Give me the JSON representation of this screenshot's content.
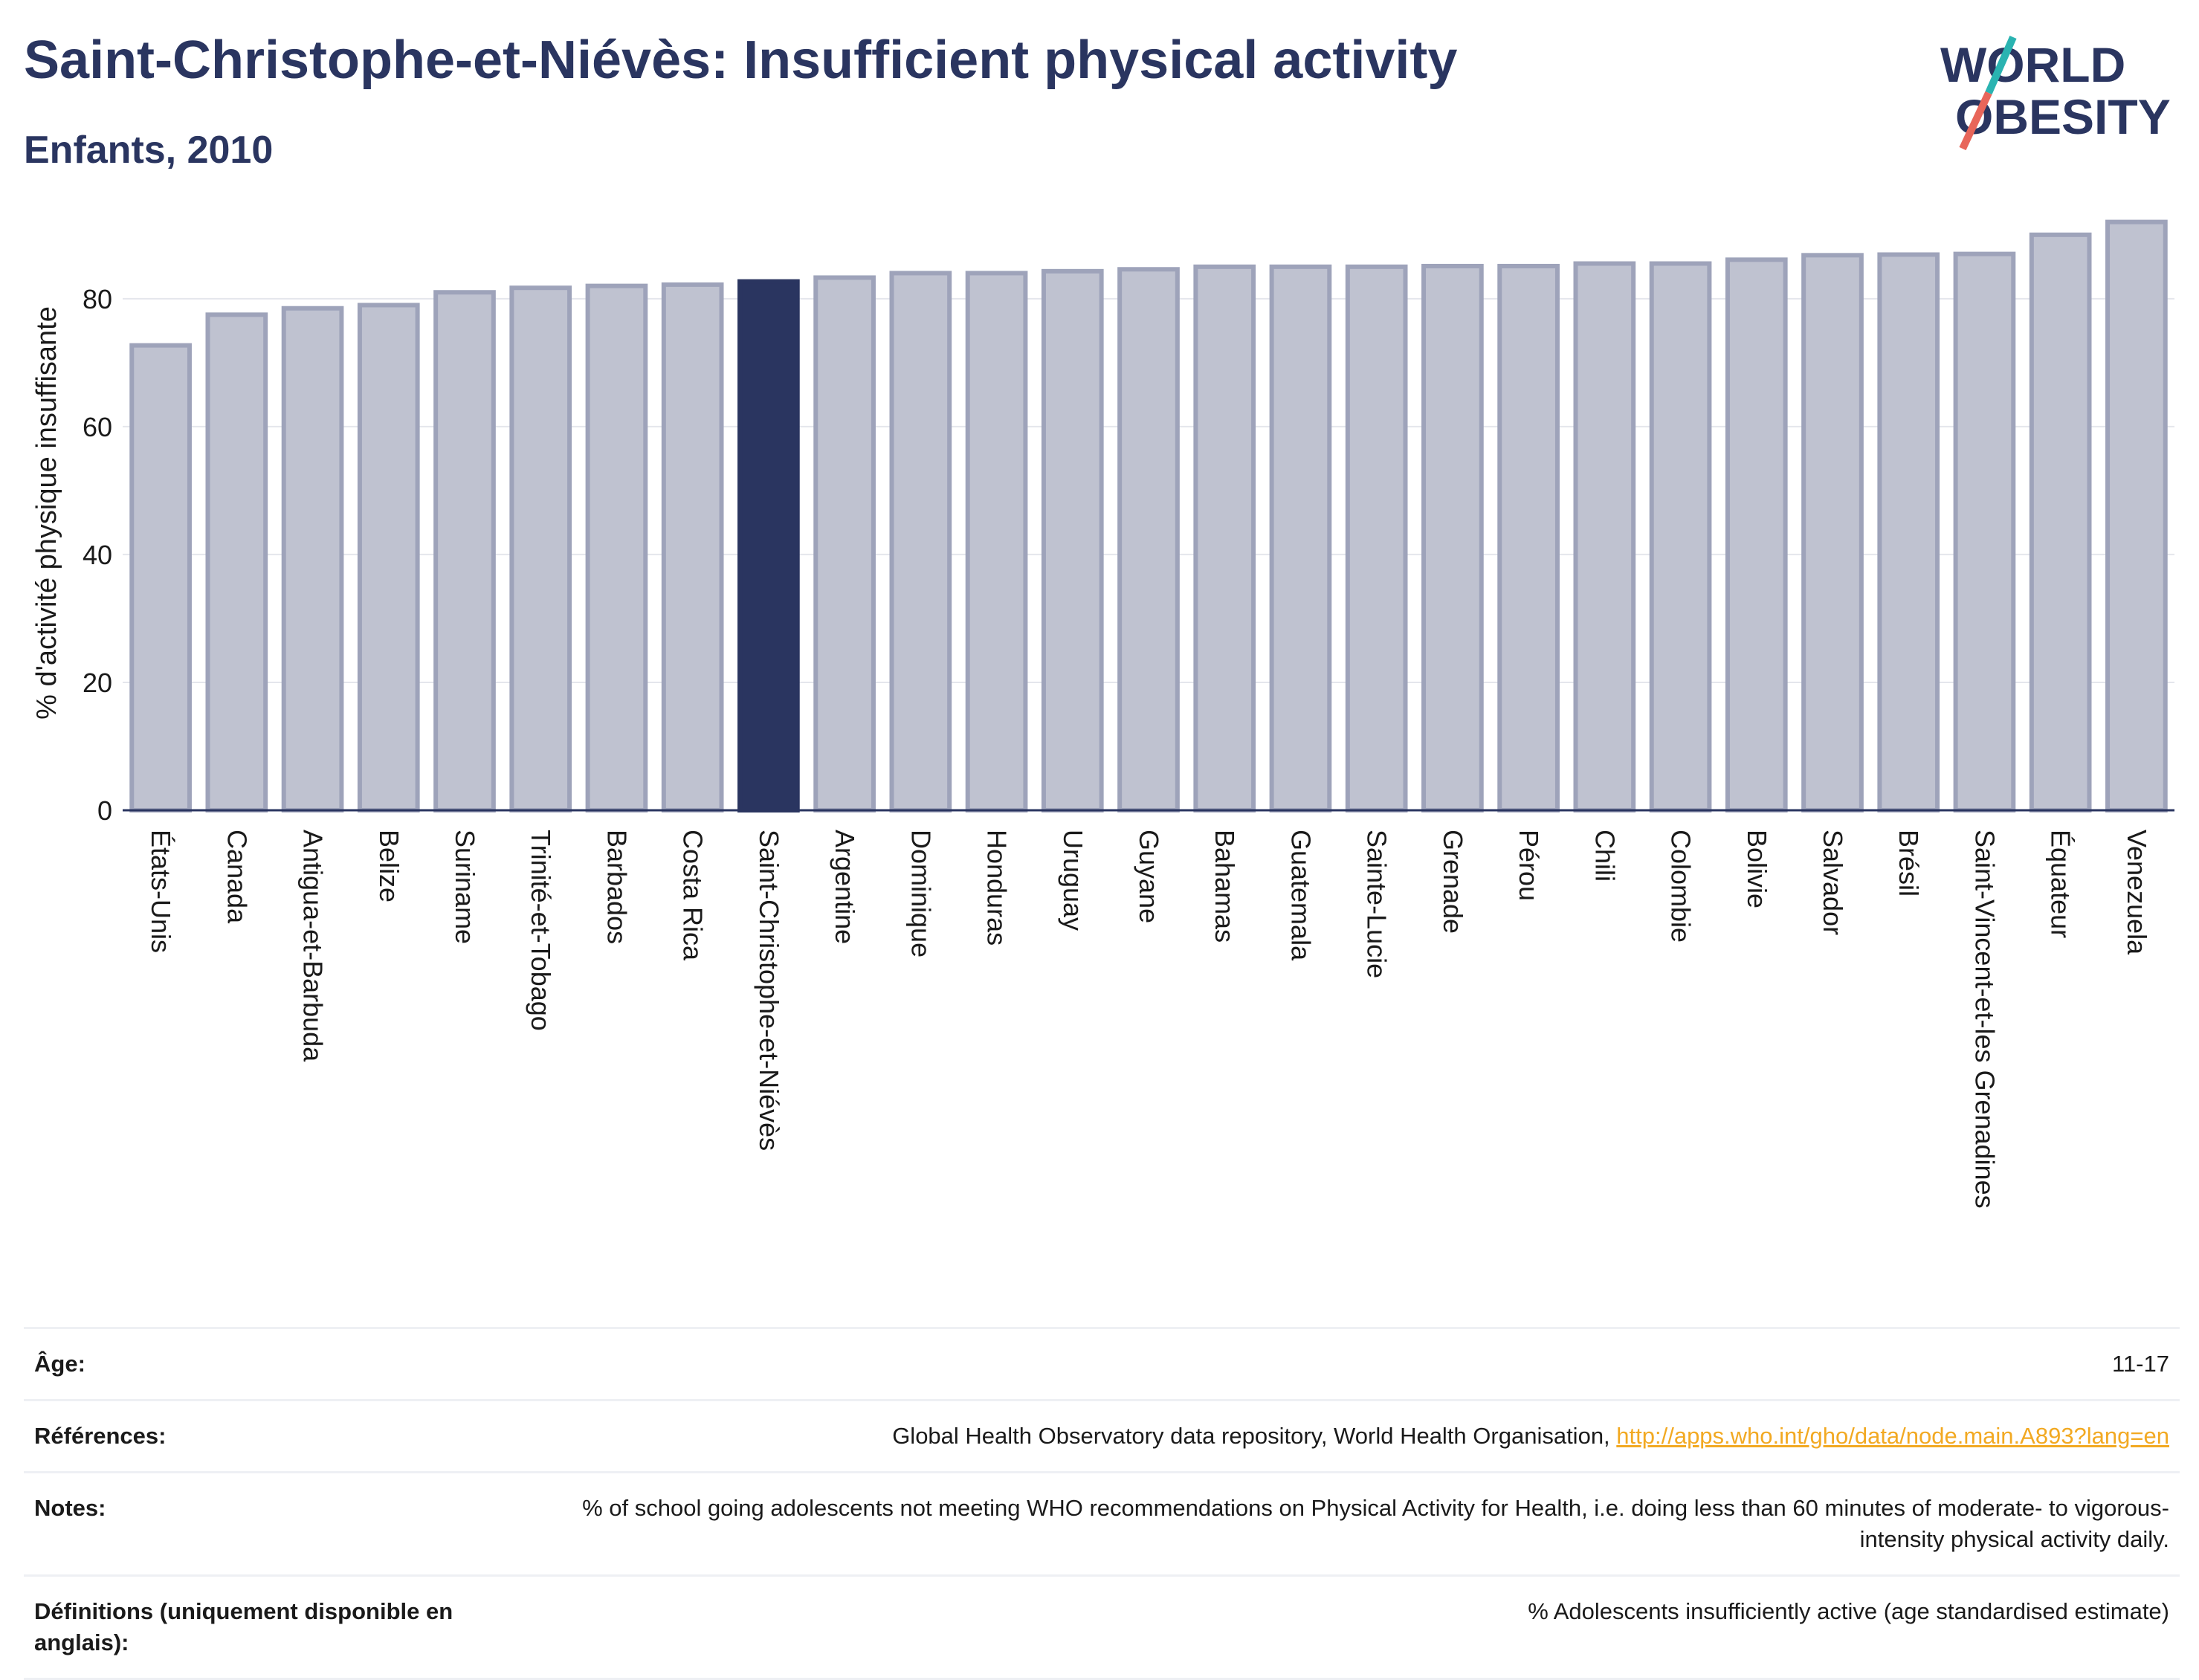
{
  "header": {
    "title": "Saint-Christophe-et-Niévès: Insufficient physical activity",
    "subtitle": "Enfants, 2010"
  },
  "logo": {
    "line1": "WORLD",
    "line2": "OBESITY",
    "colors": {
      "text": "#2a3560",
      "slash_teal": "#2ab3b1",
      "slash_red": "#e8665a"
    }
  },
  "chart_data": {
    "type": "bar",
    "title": "Saint-Christophe-et-Niévès: Insufficient physical activity",
    "subtitle": "Enfants, 2010",
    "xlabel": "",
    "ylabel": "% d'activité physique insuffisante",
    "ylim": [
      0,
      93
    ],
    "yticks": [
      0,
      20,
      40,
      60,
      80
    ],
    "grid": true,
    "highlight": "Saint-Christophe-et-Niévès",
    "colors": {
      "bar": "#bfc2d0",
      "bar_edge": "#9ea3ba",
      "highlight": "#2a3560"
    },
    "categories": [
      "États-Unis",
      "Canada",
      "Antigua-et-Barbuda",
      "Belize",
      "Suriname",
      "Trinité-et-Tobago",
      "Barbados",
      "Costa Rica",
      "Saint-Christophe-et-Niévès",
      "Argentine",
      "Dominique",
      "Honduras",
      "Uruguay",
      "Guyane",
      "Bahamas",
      "Guatemala",
      "Sainte-Lucie",
      "Grenade",
      "Pérou",
      "Chili",
      "Colombie",
      "Bolivie",
      "Salvador",
      "Brésil",
      "Saint-Vincent-et-les Grenadines",
      "Équateur",
      "Venezuela"
    ],
    "values": [
      72.7,
      77.5,
      78.5,
      79.0,
      81.0,
      81.7,
      82.0,
      82.2,
      82.7,
      83.3,
      84.0,
      84.0,
      84.3,
      84.6,
      85.0,
      85.0,
      85.0,
      85.1,
      85.1,
      85.5,
      85.5,
      86.1,
      86.8,
      86.9,
      87.0,
      90.0,
      92.0
    ]
  },
  "footer": {
    "age_label": "Âge:",
    "age_value": "11-17",
    "references_label": "Références:",
    "references_text": "Global Health Observatory data repository, World Health Organisation, ",
    "references_link": "http://apps.who.int/gho/data/node.main.A893?lang=en",
    "notes_label": "Notes:",
    "notes_value": "% of school going adolescents not meeting WHO recommendations on Physical Activity for Health, i.e. doing less than 60 minutes of moderate- to vigorous-intensity physical activity daily.",
    "definitions_label": "Définitions (uniquement disponible en anglais):",
    "definitions_value": "% Adolescents insufficiently active (age standardised estimate)"
  }
}
